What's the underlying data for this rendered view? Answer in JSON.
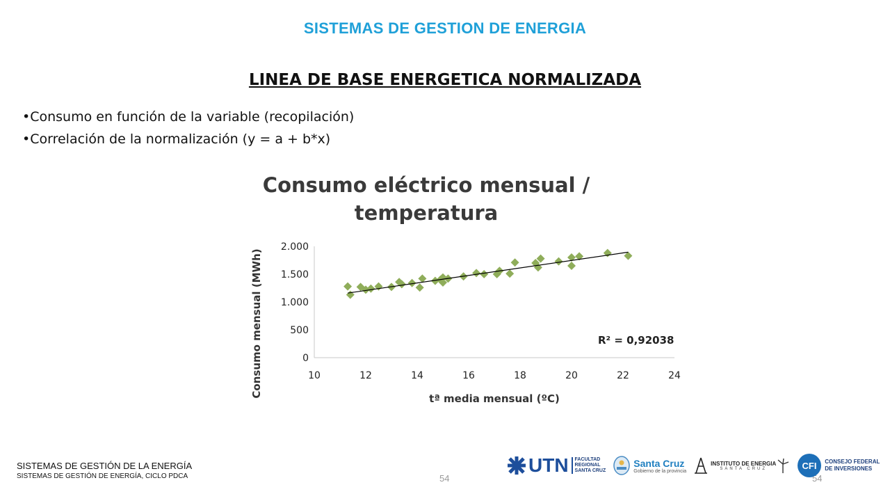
{
  "header": {
    "title": "SISTEMAS DE GESTION DE ENERGIA"
  },
  "slide": {
    "title": "LINEA DE BASE ENERGETICA NORMALIZADA",
    "bullets": [
      "Consumo en función de la variable (recopilación)",
      "Correlación de la normalización (y = a + b*x)"
    ]
  },
  "chart_data": {
    "type": "scatter",
    "title_line1": "Consumo eléctrico mensual /",
    "title_line2": "temperatura",
    "xlabel": "tª media mensual (ºC)",
    "ylabel": "Consumo mensual (MWh)",
    "xlim": [
      10,
      24
    ],
    "ylim": [
      0,
      2000
    ],
    "x_ticks": [
      10,
      12,
      14,
      16,
      18,
      20,
      22,
      24
    ],
    "y_ticks": [
      0,
      500,
      1000,
      1500,
      2000
    ],
    "x_tick_labels": [
      "10",
      "12",
      "14",
      "16",
      "18",
      "20",
      "22",
      "24"
    ],
    "y_tick_labels": [
      "0",
      "500",
      "1.000",
      "1.500",
      "2.000"
    ],
    "annotation": "R² = 0,92038",
    "grid": false,
    "marker_color": "#8fad5a",
    "trendline_color": "#000000",
    "trendline": {
      "x": [
        11.3,
        22.2
      ],
      "y": [
        1160,
        1895
      ]
    },
    "points": [
      {
        "x": 11.3,
        "y": 1280
      },
      {
        "x": 11.4,
        "y": 1130
      },
      {
        "x": 11.8,
        "y": 1270
      },
      {
        "x": 12.0,
        "y": 1220
      },
      {
        "x": 12.2,
        "y": 1240
      },
      {
        "x": 12.5,
        "y": 1280
      },
      {
        "x": 13.0,
        "y": 1270
      },
      {
        "x": 13.3,
        "y": 1360
      },
      {
        "x": 13.4,
        "y": 1320
      },
      {
        "x": 13.8,
        "y": 1340
      },
      {
        "x": 14.1,
        "y": 1260
      },
      {
        "x": 14.2,
        "y": 1420
      },
      {
        "x": 14.7,
        "y": 1380
      },
      {
        "x": 14.9,
        "y": 1400
      },
      {
        "x": 15.0,
        "y": 1350
      },
      {
        "x": 15.0,
        "y": 1440
      },
      {
        "x": 15.2,
        "y": 1420
      },
      {
        "x": 15.8,
        "y": 1460
      },
      {
        "x": 16.3,
        "y": 1520
      },
      {
        "x": 16.6,
        "y": 1500
      },
      {
        "x": 17.1,
        "y": 1500
      },
      {
        "x": 17.2,
        "y": 1560
      },
      {
        "x": 17.6,
        "y": 1510
      },
      {
        "x": 17.8,
        "y": 1710
      },
      {
        "x": 18.6,
        "y": 1700
      },
      {
        "x": 18.7,
        "y": 1620
      },
      {
        "x": 18.8,
        "y": 1780
      },
      {
        "x": 19.5,
        "y": 1730
      },
      {
        "x": 20.0,
        "y": 1650
      },
      {
        "x": 20.0,
        "y": 1800
      },
      {
        "x": 20.3,
        "y": 1820
      },
      {
        "x": 21.4,
        "y": 1880
      },
      {
        "x": 22.2,
        "y": 1830
      }
    ]
  },
  "footer": {
    "line1": "SISTEMAS DE GESTIÓN DE LA ENERGÍA",
    "line2": "SISTEMAS DE GESTIÓN DE ENERGÍA, CICLO PDCA",
    "page_number": "54",
    "page_number_right": "54"
  },
  "logos": {
    "utn": {
      "name": "UTN",
      "line1": "FACULTAD",
      "line2": "REGIONAL",
      "line3": "SANTA CRUZ",
      "color": "#1d4e9b"
    },
    "santa_cruz": {
      "name": "Santa Cruz",
      "sub": "Gobierno de la provincia",
      "color": "#1f7fc0"
    },
    "instituto": {
      "name": "INSTITUTO DE ENERGIA",
      "sub": "SANTA CRUZ"
    },
    "cfi": {
      "name": "CFI",
      "line1": "CONSEJO FEDERAL",
      "line2": "DE INVERSIONES",
      "color": "#1d6fb8"
    }
  }
}
